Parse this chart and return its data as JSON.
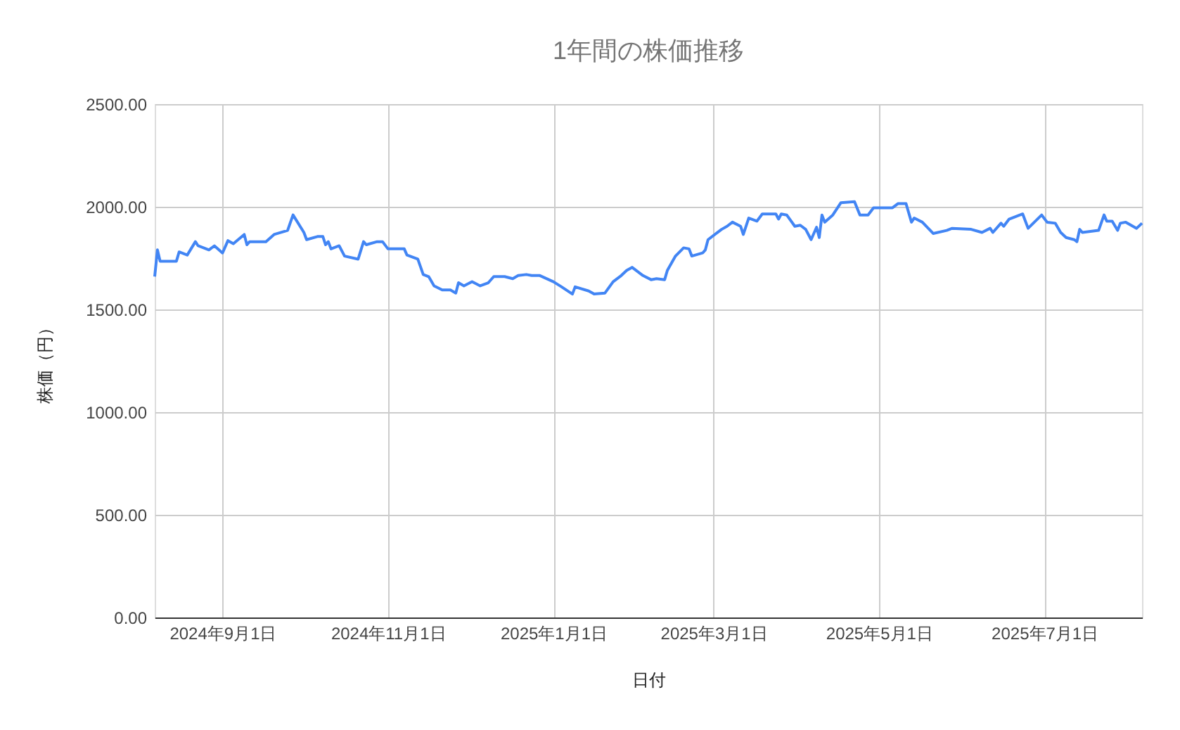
{
  "chart_data": {
    "type": "line",
    "title": "1年間の株価推移",
    "xlabel": "日付",
    "ylabel": "株価（円）",
    "xlim": [
      "2024-08-07",
      "2025-08-06"
    ],
    "xticks": [
      {
        "value": "2024-09-01",
        "label": "2024年9月1日"
      },
      {
        "value": "2024-11-01",
        "label": "2024年11月1日"
      },
      {
        "value": "2025-01-01",
        "label": "2025年1月1日"
      },
      {
        "value": "2025-03-01",
        "label": "2025年3月1日"
      },
      {
        "value": "2025-05-01",
        "label": "2025年5月1日"
      },
      {
        "value": "2025-07-01",
        "label": "2025年7月1日"
      }
    ],
    "ylim": [
      0,
      2500
    ],
    "yticks": [
      {
        "value": 0,
        "label": "0.00"
      },
      {
        "value": 500,
        "label": "500.00"
      },
      {
        "value": 1000,
        "label": "1000.00"
      },
      {
        "value": 1500,
        "label": "1500.00"
      },
      {
        "value": 2000,
        "label": "2000.00"
      },
      {
        "value": 2500,
        "label": "2500.00"
      }
    ],
    "grid": true,
    "marker": "none",
    "line_style": "solid",
    "x": [
      "2024-08-07",
      "2024-08-08",
      "2024-08-09",
      "2024-08-15",
      "2024-08-16",
      "2024-08-19",
      "2024-08-22",
      "2024-08-23",
      "2024-08-27",
      "2024-08-29",
      "2024-09-01",
      "2024-09-03",
      "2024-09-05",
      "2024-09-09",
      "2024-09-10",
      "2024-09-11",
      "2024-09-17",
      "2024-09-20",
      "2024-09-25",
      "2024-09-27",
      "2024-10-01",
      "2024-10-02",
      "2024-10-06",
      "2024-10-08",
      "2024-10-09",
      "2024-10-10",
      "2024-10-11",
      "2024-10-14",
      "2024-10-16",
      "2024-10-21",
      "2024-10-23",
      "2024-10-24",
      "2024-10-28",
      "2024-10-30",
      "2024-11-01",
      "2024-11-07",
      "2024-11-08",
      "2024-11-12",
      "2024-11-14",
      "2024-11-16",
      "2024-11-18",
      "2024-11-21",
      "2024-11-24",
      "2024-11-26",
      "2024-11-27",
      "2024-11-29",
      "2024-12-02",
      "2024-12-05",
      "2024-12-08",
      "2024-12-10",
      "2024-12-14",
      "2024-12-17",
      "2024-12-19",
      "2024-12-22",
      "2024-12-24",
      "2024-12-27",
      "2025-01-01",
      "2025-01-04",
      "2025-01-08",
      "2025-01-09",
      "2025-01-14",
      "2025-01-16",
      "2025-01-20",
      "2025-01-23",
      "2025-01-26",
      "2025-01-28",
      "2025-01-30",
      "2025-02-03",
      "2025-02-06",
      "2025-02-08",
      "2025-02-11",
      "2025-02-12",
      "2025-02-15",
      "2025-02-18",
      "2025-02-20",
      "2025-02-21",
      "2025-02-25",
      "2025-02-26",
      "2025-02-27",
      "2025-03-04",
      "2025-03-06",
      "2025-03-08",
      "2025-03-11",
      "2025-03-12",
      "2025-03-14",
      "2025-03-17",
      "2025-03-19",
      "2025-03-24",
      "2025-03-25",
      "2025-03-26",
      "2025-03-28",
      "2025-03-31",
      "2025-04-02",
      "2025-04-04",
      "2025-04-06",
      "2025-04-08",
      "2025-04-09",
      "2025-04-10",
      "2025-04-11",
      "2025-04-14",
      "2025-04-17",
      "2025-04-22",
      "2025-04-24",
      "2025-04-27",
      "2025-04-29",
      "2025-05-06",
      "2025-05-08",
      "2025-05-11",
      "2025-05-13",
      "2025-05-14",
      "2025-05-17",
      "2025-05-21",
      "2025-05-26",
      "2025-05-28",
      "2025-06-04",
      "2025-06-08",
      "2025-06-11",
      "2025-06-12",
      "2025-06-15",
      "2025-06-16",
      "2025-06-18",
      "2025-06-23",
      "2025-06-25",
      "2025-06-30",
      "2025-07-02",
      "2025-07-05",
      "2025-07-07",
      "2025-07-09",
      "2025-07-12",
      "2025-07-13",
      "2025-07-14",
      "2025-07-15",
      "2025-07-21",
      "2025-07-23",
      "2025-07-24",
      "2025-07-26",
      "2025-07-28",
      "2025-07-29",
      "2025-07-31",
      "2025-08-04",
      "2025-08-06"
    ],
    "series": [
      {
        "color": "#4285f4",
        "values": [
          1660,
          1790,
          1735,
          1735,
          1780,
          1765,
          1830,
          1810,
          1790,
          1810,
          1775,
          1835,
          1820,
          1865,
          1815,
          1830,
          1830,
          1865,
          1885,
          1960,
          1875,
          1840,
          1855,
          1855,
          1815,
          1830,
          1795,
          1810,
          1760,
          1745,
          1830,
          1815,
          1830,
          1830,
          1795,
          1795,
          1765,
          1745,
          1670,
          1660,
          1615,
          1595,
          1595,
          1580,
          1630,
          1615,
          1635,
          1615,
          1630,
          1660,
          1660,
          1650,
          1665,
          1670,
          1665,
          1665,
          1635,
          1610,
          1575,
          1610,
          1590,
          1575,
          1580,
          1635,
          1665,
          1690,
          1705,
          1665,
          1645,
          1650,
          1645,
          1690,
          1760,
          1800,
          1795,
          1760,
          1775,
          1790,
          1840,
          1890,
          1905,
          1925,
          1905,
          1865,
          1945,
          1930,
          1965,
          1965,
          1940,
          1965,
          1960,
          1905,
          1910,
          1890,
          1840,
          1900,
          1850,
          1960,
          1925,
          1960,
          2020,
          2025,
          1960,
          1960,
          1995,
          1995,
          2015,
          2015,
          1925,
          1945,
          1925,
          1870,
          1885,
          1895,
          1890,
          1875,
          1895,
          1875,
          1920,
          1905,
          1940,
          1965,
          1895,
          1960,
          1925,
          1920,
          1875,
          1850,
          1840,
          1830,
          1890,
          1875,
          1885,
          1960,
          1930,
          1930,
          1885,
          1920,
          1925,
          1895,
          1920
        ]
      }
    ]
  }
}
